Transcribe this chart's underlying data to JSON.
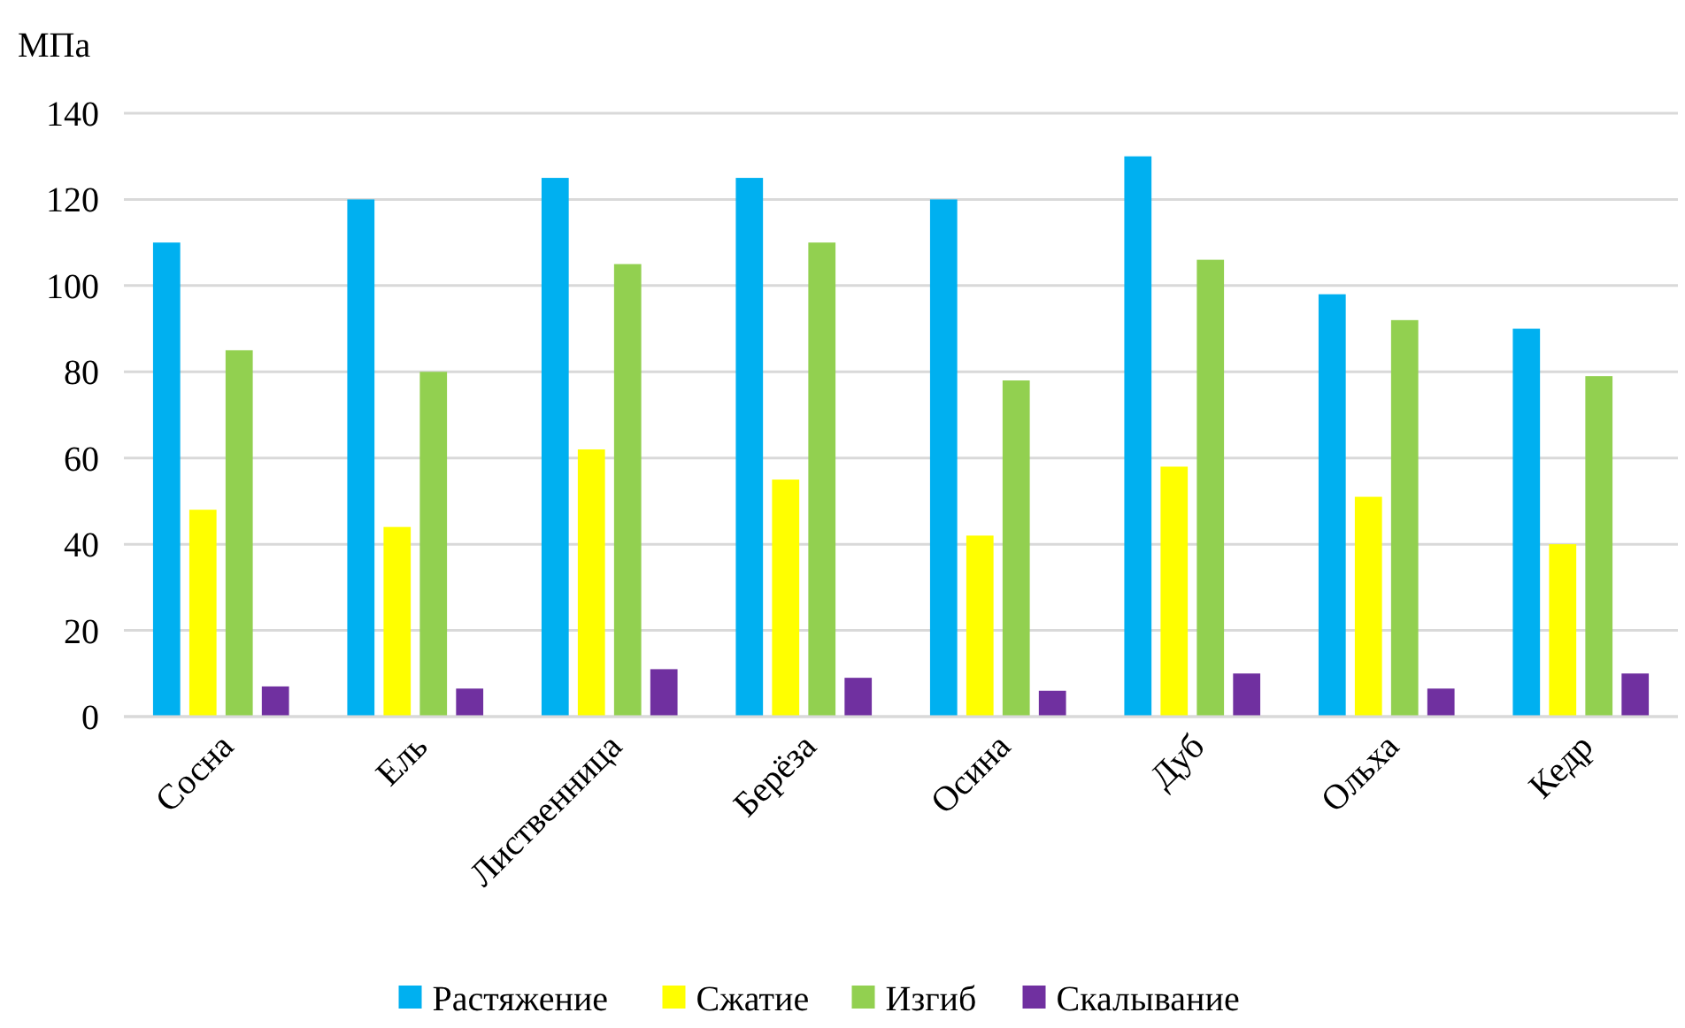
{
  "chart_data": {
    "type": "bar",
    "ylabel": "МПа",
    "categories": [
      "Сосна",
      "Ель",
      "Лиственница",
      "Берёза",
      "Осина",
      "Дуб",
      "Ольха",
      "Кедр"
    ],
    "series": [
      {
        "name": "Растяжение",
        "color": "#00b0f0",
        "values": [
          110,
          120,
          125,
          125,
          120,
          130,
          98,
          90
        ]
      },
      {
        "name": "Сжатие",
        "color": "#ffff00",
        "values": [
          48,
          44,
          62,
          55,
          42,
          58,
          51,
          40
        ]
      },
      {
        "name": "Изгиб",
        "color": "#92d050",
        "values": [
          85,
          80,
          105,
          110,
          78,
          106,
          92,
          79
        ]
      },
      {
        "name": "Скалывание",
        "color": "#7030a0",
        "values": [
          7,
          6.5,
          11,
          9,
          6,
          10,
          6.5,
          10
        ]
      }
    ],
    "ylim": [
      0,
      140
    ],
    "yticks": [
      0,
      20,
      40,
      60,
      80,
      100,
      120,
      140
    ],
    "grid": "y",
    "legend": "bottom"
  }
}
